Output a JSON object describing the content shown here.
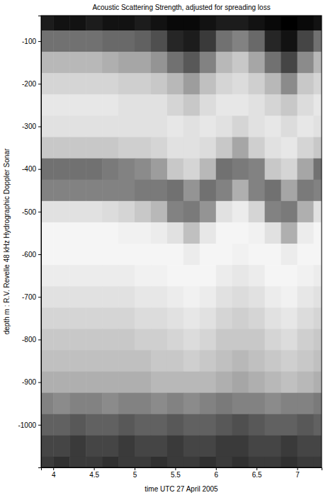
{
  "chart_data": {
    "type": "heatmap",
    "title": "Acoustic Scattering Strength, adjusted for spreading loss",
    "x_label": "time UTC 27 April 2005",
    "y_label": "depth m : R.V. Revelle 48 kHz Hydrographic Doppler Sonar",
    "x": [
      3.9,
      4.1,
      4.3,
      4.5,
      4.7,
      4.9,
      5.1,
      5.3,
      5.5,
      5.7,
      5.9,
      6.1,
      6.3,
      6.5,
      6.7,
      6.9,
      7.1,
      7.3
    ],
    "y": [
      -50,
      -100,
      -150,
      -200,
      -250,
      -300,
      -350,
      -400,
      -450,
      -500,
      -550,
      -600,
      -650,
      -700,
      -750,
      -800,
      -850,
      -900,
      -950,
      -1000,
      -1050,
      -1100
    ],
    "values": [
      [
        -61,
        -60,
        -60,
        -61,
        -60,
        -60,
        -61,
        -60,
        -59,
        -59,
        -60,
        -61,
        -61,
        -60,
        -59,
        -58,
        -59,
        -60
      ],
      [
        -70,
        -70,
        -70,
        -70,
        -69,
        -69,
        -68,
        -66,
        -62,
        -61,
        -64,
        -70,
        -72,
        -69,
        -62,
        -60,
        -65,
        -70
      ],
      [
        -78,
        -78,
        -78,
        -78,
        -77,
        -76,
        -76,
        -74,
        -70,
        -67,
        -72,
        -78,
        -80,
        -76,
        -70,
        -65,
        -73,
        -78
      ],
      [
        -82,
        -82,
        -82,
        -82,
        -82,
        -81,
        -81,
        -80,
        -78,
        -75,
        -79,
        -82,
        -83,
        -81,
        -78,
        -73,
        -80,
        -82
      ],
      [
        -85,
        -85,
        -85,
        -85,
        -85,
        -84,
        -84,
        -84,
        -82,
        -80,
        -83,
        -85,
        -85,
        -84,
        -82,
        -80,
        -83,
        -85
      ],
      [
        -84,
        -84,
        -84,
        -84,
        -84,
        -84,
        -84,
        -84,
        -85,
        -84,
        -85,
        -84,
        -82,
        -84,
        -85,
        -83,
        -85,
        -84
      ],
      [
        -80,
        -80,
        -80,
        -80,
        -80,
        -81,
        -81,
        -82,
        -84,
        -84,
        -83,
        -80,
        -76,
        -81,
        -84,
        -85,
        -82,
        -80
      ],
      [
        -70,
        -70,
        -70,
        -70,
        -71,
        -72,
        -73,
        -75,
        -80,
        -82,
        -78,
        -70,
        -71,
        -72,
        -80,
        -82,
        -76,
        -70
      ],
      [
        -72,
        -72,
        -72,
        -72,
        -72,
        -72,
        -71,
        -71,
        -70,
        -74,
        -70,
        -72,
        -77,
        -72,
        -70,
        -76,
        -71,
        -72
      ],
      [
        -84,
        -84,
        -84,
        -84,
        -83,
        -82,
        -80,
        -78,
        -72,
        -71,
        -74,
        -84,
        -86,
        -82,
        -72,
        -71,
        -77,
        -84
      ],
      [
        -88,
        -88,
        -88,
        -88,
        -88,
        -87,
        -87,
        -86,
        -84,
        -79,
        -85,
        -88,
        -88,
        -87,
        -84,
        -77,
        -86,
        -88
      ],
      [
        -88,
        -88,
        -88,
        -88,
        -88,
        -88,
        -88,
        -88,
        -88,
        -86,
        -88,
        -88,
        -87,
        -88,
        -88,
        -86,
        -88,
        -88
      ],
      [
        -86,
        -86,
        -86,
        -86,
        -86,
        -86,
        -87,
        -87,
        -88,
        -88,
        -88,
        -86,
        -85,
        -86,
        -88,
        -88,
        -87,
        -86
      ],
      [
        -84,
        -84,
        -84,
        -84,
        -84,
        -84,
        -85,
        -85,
        -86,
        -87,
        -86,
        -84,
        -83,
        -84,
        -86,
        -87,
        -85,
        -84
      ],
      [
        -82,
        -82,
        -82,
        -82,
        -82,
        -82,
        -83,
        -83,
        -84,
        -85,
        -84,
        -82,
        -81,
        -82,
        -84,
        -85,
        -83,
        -82
      ],
      [
        -80,
        -80,
        -80,
        -80,
        -80,
        -80,
        -81,
        -81,
        -82,
        -83,
        -82,
        -80,
        -80,
        -80,
        -82,
        -83,
        -81,
        -80
      ],
      [
        -79,
        -79,
        -79,
        -79,
        -79,
        -79,
        -79,
        -80,
        -80,
        -81,
        -80,
        -79,
        -78,
        -79,
        -80,
        -81,
        -80,
        -79
      ],
      [
        -77,
        -77,
        -77,
        -77,
        -77,
        -77,
        -77,
        -78,
        -78,
        -78,
        -78,
        -77,
        -76,
        -77,
        -78,
        -79,
        -78,
        -77
      ],
      [
        -72,
        -73,
        -72,
        -72,
        -73,
        -72,
        -72,
        -73,
        -72,
        -73,
        -72,
        -71,
        -72,
        -72,
        -73,
        -72,
        -72,
        -71
      ],
      [
        -68,
        -68,
        -67,
        -68,
        -68,
        -67,
        -68,
        -68,
        -67,
        -68,
        -68,
        -67,
        -66,
        -67,
        -68,
        -68,
        -67,
        -68
      ],
      [
        -65,
        -65,
        -64,
        -65,
        -65,
        -64,
        -65,
        -65,
        -64,
        -65,
        -65,
        -64,
        -64,
        -65,
        -65,
        -64,
        -65,
        -65
      ],
      [
        -64,
        -63,
        -64,
        -64,
        -63,
        -64,
        -64,
        -63,
        -64,
        -64,
        -63,
        -64,
        -63,
        -64,
        -64,
        -63,
        -64,
        -64
      ]
    ],
    "xlim": [
      3.85,
      7.3
    ],
    "ylim": [
      -1100,
      -40
    ],
    "xticks": [
      4,
      4.5,
      5,
      5.5,
      6,
      6.5,
      7
    ],
    "yticks": [
      -100,
      -200,
      -300,
      -400,
      -500,
      -600,
      -700,
      -800,
      -900,
      -1000
    ],
    "grid": false
  }
}
